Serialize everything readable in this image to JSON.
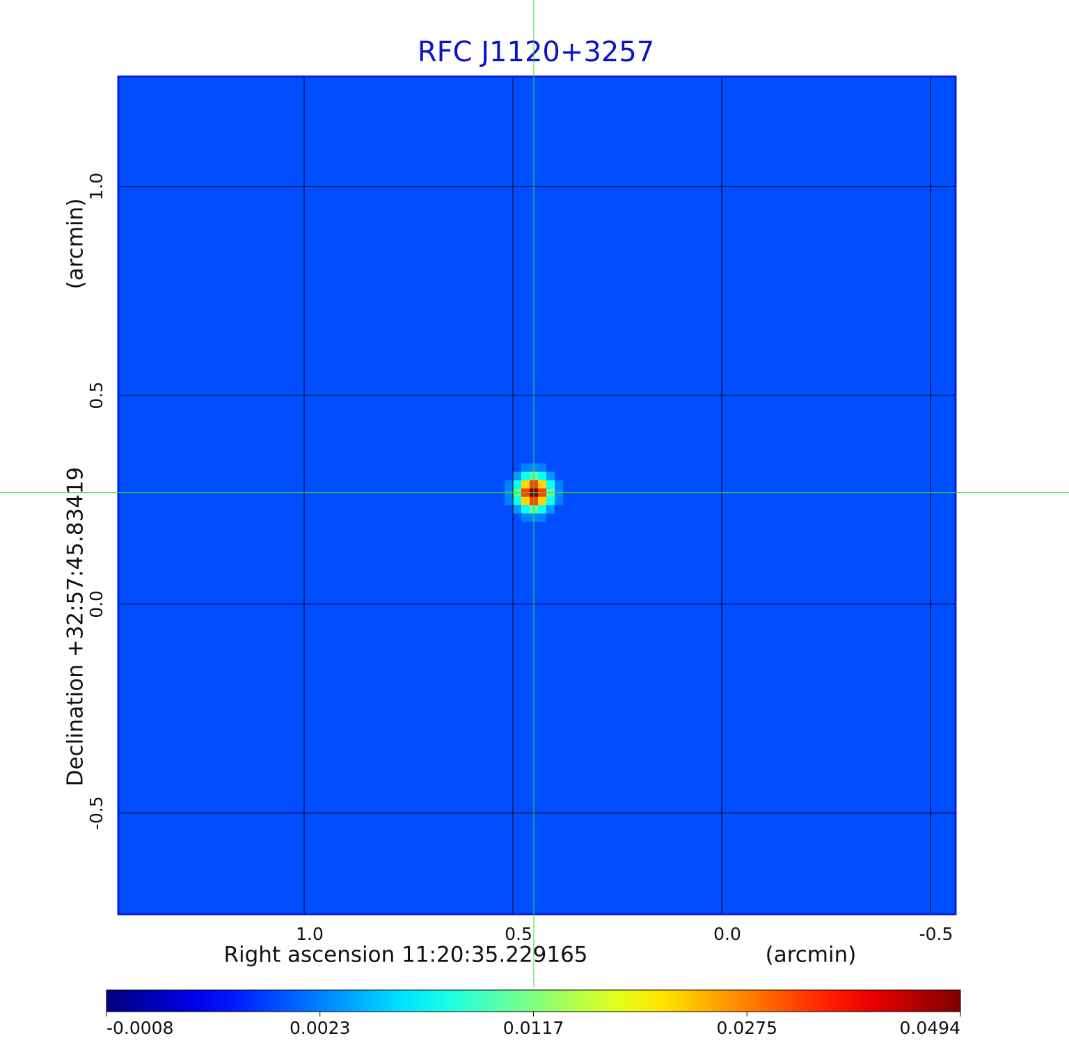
{
  "chart_data": {
    "type": "image",
    "title": "RFC J1120+3257",
    "xlabel": "Right ascension  11:20:35.229165",
    "xunit": "(arcmin)",
    "ylabel": "Declination  +32:57:45.83419",
    "yunit": "(arcmin)",
    "xlim": [
      1.445,
      -0.56
    ],
    "xticks": [
      1.0,
      0.5,
      0.0,
      -0.5
    ],
    "ylim": [
      -0.742,
      1.263
    ],
    "yticks": [
      -0.5,
      0.0,
      0.5,
      1.0
    ],
    "grid": true,
    "background": 0.0017,
    "source": {
      "x": 0.45,
      "y": 0.267,
      "peak": 0.0494
    },
    "colorbar_ticks": [
      -0.0008,
      0.0023,
      0.0117,
      0.0275,
      0.0494
    ],
    "title_color": "#0a14c8",
    "frame_color": "#0a1ee0",
    "crosshair_color": "#33dd33"
  }
}
